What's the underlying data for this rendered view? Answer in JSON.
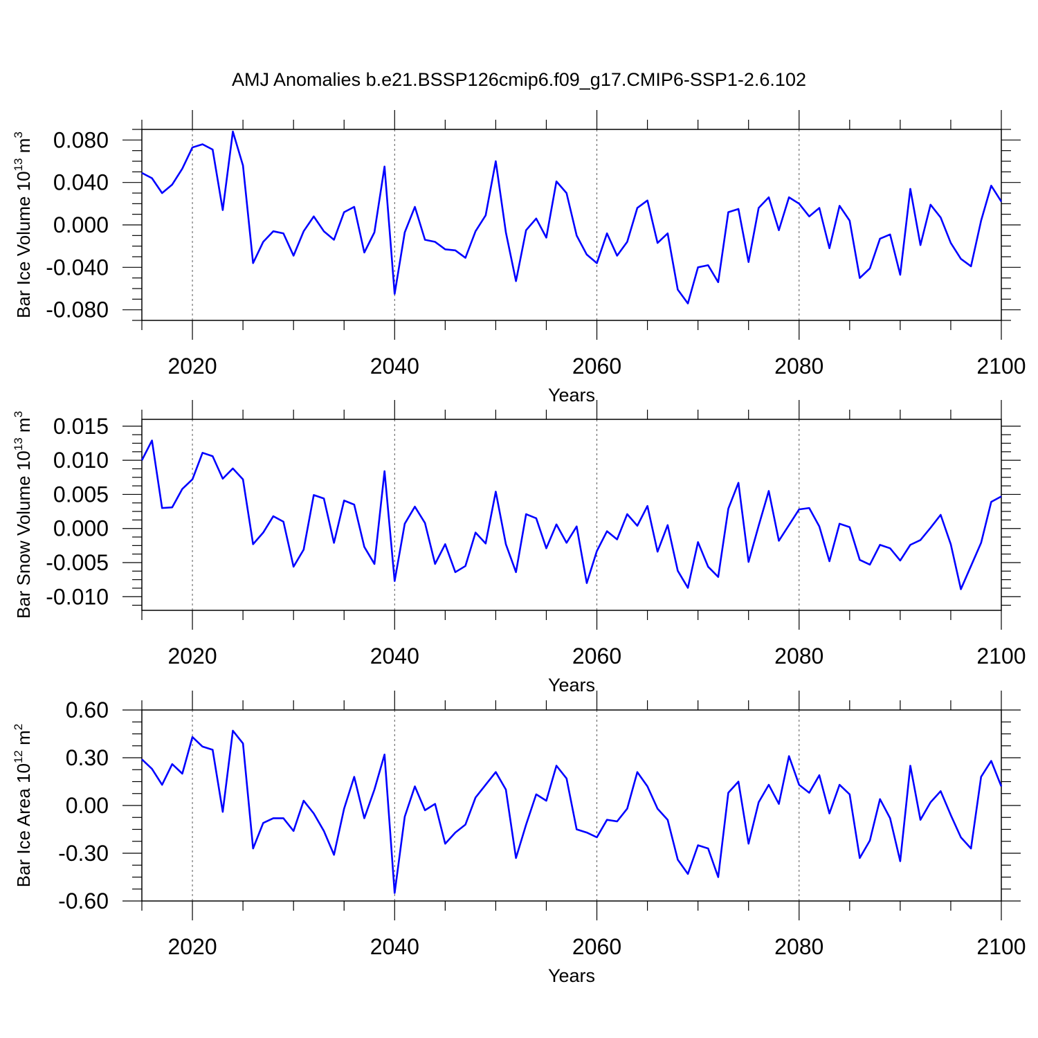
{
  "title": "AMJ Anomalies b.e21.BSSP126cmip6.f09_g17.CMIP6-SSP1-2.6.102",
  "colors": {
    "line": "#0000ff",
    "axis": "#000000",
    "grid": "#555555"
  },
  "chart_data": [
    {
      "type": "line",
      "ylabel": {
        "prefix": "Bar Ice Volume 10",
        "exp": "13",
        "unit": " m",
        "unit_exp": "3"
      },
      "xlabel": "Years",
      "xlim": [
        2015,
        2100
      ],
      "ylim": [
        -0.09,
        0.09
      ],
      "xticks": [
        2020,
        2040,
        2060,
        2080,
        2100
      ],
      "yticks": [
        -0.08,
        -0.04,
        0.0,
        0.04,
        0.08
      ],
      "ytick_labels": [
        "-0.080",
        "-0.040",
        "0.000",
        "0.040",
        "0.080"
      ],
      "x": [
        2015,
        2016,
        2017,
        2018,
        2019,
        2020,
        2021,
        2022,
        2023,
        2024,
        2025,
        2026,
        2027,
        2028,
        2029,
        2030,
        2031,
        2032,
        2033,
        2034,
        2035,
        2036,
        2037,
        2038,
        2039,
        2040,
        2041,
        2042,
        2043,
        2044,
        2045,
        2046,
        2047,
        2048,
        2049,
        2050,
        2051,
        2052,
        2053,
        2054,
        2055,
        2056,
        2057,
        2058,
        2059,
        2060,
        2061,
        2062,
        2063,
        2064,
        2065,
        2066,
        2067,
        2068,
        2069,
        2070,
        2071,
        2072,
        2073,
        2074,
        2075,
        2076,
        2077,
        2078,
        2079,
        2080,
        2081,
        2082,
        2083,
        2084,
        2085,
        2086,
        2087,
        2088,
        2089,
        2090,
        2091,
        2092,
        2093,
        2094,
        2095,
        2096,
        2097,
        2098,
        2099,
        2100
      ],
      "series": [
        {
          "name": "Bar Ice Volume",
          "values": [
            0.049,
            0.044,
            0.03,
            0.038,
            0.053,
            0.073,
            0.076,
            0.071,
            0.014,
            0.088,
            0.056,
            -0.036,
            -0.016,
            -0.006,
            -0.008,
            -0.029,
            -0.006,
            0.008,
            -0.006,
            -0.014,
            0.012,
            0.017,
            -0.026,
            -0.007,
            0.055,
            -0.065,
            -0.007,
            0.017,
            -0.014,
            -0.016,
            -0.023,
            -0.024,
            -0.031,
            -0.006,
            0.009,
            0.06,
            -0.007,
            -0.053,
            -0.005,
            0.006,
            -0.012,
            0.041,
            0.03,
            -0.01,
            -0.028,
            -0.036,
            -0.008,
            -0.029,
            -0.016,
            0.016,
            0.023,
            -0.017,
            -0.008,
            -0.061,
            -0.074,
            -0.04,
            -0.038,
            -0.054,
            0.012,
            0.015,
            -0.035,
            0.016,
            0.026,
            -0.005,
            0.026,
            0.02,
            0.008,
            0.016,
            -0.022,
            0.018,
            0.004,
            -0.05,
            -0.041,
            -0.013,
            -0.009,
            -0.047,
            0.034,
            -0.019,
            0.019,
            0.007,
            -0.017,
            -0.032,
            -0.039,
            0.004,
            0.037,
            0.022
          ]
        }
      ]
    },
    {
      "type": "line",
      "ylabel": {
        "prefix": "Bar Snow Volume 10",
        "exp": "13",
        "unit": " m",
        "unit_exp": "3"
      },
      "xlabel": "Years",
      "xlim": [
        2015,
        2100
      ],
      "ylim": [
        -0.012,
        0.016
      ],
      "xticks": [
        2020,
        2040,
        2060,
        2080,
        2100
      ],
      "yticks": [
        -0.01,
        -0.005,
        0.0,
        0.005,
        0.01,
        0.015
      ],
      "ytick_labels": [
        "-0.010",
        "-0.005",
        "0.000",
        "0.005",
        "0.010",
        "0.015"
      ],
      "x": [
        2015,
        2016,
        2017,
        2018,
        2019,
        2020,
        2021,
        2022,
        2023,
        2024,
        2025,
        2026,
        2027,
        2028,
        2029,
        2030,
        2031,
        2032,
        2033,
        2034,
        2035,
        2036,
        2037,
        2038,
        2039,
        2040,
        2041,
        2042,
        2043,
        2044,
        2045,
        2046,
        2047,
        2048,
        2049,
        2050,
        2051,
        2052,
        2053,
        2054,
        2055,
        2056,
        2057,
        2058,
        2059,
        2060,
        2061,
        2062,
        2063,
        2064,
        2065,
        2066,
        2067,
        2068,
        2069,
        2070,
        2071,
        2072,
        2073,
        2074,
        2075,
        2076,
        2077,
        2078,
        2079,
        2080,
        2081,
        2082,
        2083,
        2084,
        2085,
        2086,
        2087,
        2088,
        2089,
        2090,
        2091,
        2092,
        2093,
        2094,
        2095,
        2096,
        2097,
        2098,
        2099,
        2100
      ],
      "series": [
        {
          "name": "Bar Snow Volume",
          "values": [
            0.01,
            0.0129,
            0.003,
            0.0031,
            0.0058,
            0.0072,
            0.0111,
            0.0106,
            0.0073,
            0.0088,
            0.0072,
            -0.0023,
            -0.0006,
            0.0018,
            0.001,
            -0.0056,
            -0.0031,
            0.0049,
            0.0044,
            -0.0021,
            0.0041,
            0.0035,
            -0.0027,
            -0.0052,
            0.0084,
            -0.0077,
            0.0007,
            0.0032,
            0.0008,
            -0.0052,
            -0.0023,
            -0.0064,
            -0.0055,
            -0.0006,
            -0.0022,
            0.0054,
            -0.0023,
            -0.0064,
            0.0021,
            0.0015,
            -0.0029,
            0.0006,
            -0.0021,
            0.0003,
            -0.008,
            -0.0033,
            -0.0004,
            -0.0016,
            0.0021,
            0.0004,
            0.0033,
            -0.0034,
            0.0005,
            -0.0062,
            -0.0087,
            -0.002,
            -0.0056,
            -0.0071,
            0.0029,
            0.0067,
            -0.0049,
            0.0004,
            0.0055,
            -0.0018,
            0.0005,
            0.0028,
            0.003,
            0.0003,
            -0.0048,
            0.0007,
            0.0002,
            -0.0046,
            -0.0053,
            -0.0024,
            -0.0029,
            -0.0047,
            -0.0024,
            -0.0017,
            0.0001,
            0.002,
            -0.0023,
            -0.0089,
            -0.0055,
            -0.0021,
            0.0039,
            0.0047
          ]
        }
      ]
    },
    {
      "type": "line",
      "ylabel": {
        "prefix": "Bar Ice Area 10",
        "exp": "12",
        "unit": " m",
        "unit_exp": "2"
      },
      "xlabel": "Years",
      "xlim": [
        2015,
        2100
      ],
      "ylim": [
        -0.6,
        0.6
      ],
      "xticks": [
        2020,
        2040,
        2060,
        2080,
        2100
      ],
      "yticks": [
        -0.6,
        -0.3,
        0.0,
        0.3,
        0.6
      ],
      "ytick_labels": [
        "-0.60",
        "-0.30",
        "0.00",
        "0.30",
        "0.60"
      ],
      "x": [
        2015,
        2016,
        2017,
        2018,
        2019,
        2020,
        2021,
        2022,
        2023,
        2024,
        2025,
        2026,
        2027,
        2028,
        2029,
        2030,
        2031,
        2032,
        2033,
        2034,
        2035,
        2036,
        2037,
        2038,
        2039,
        2040,
        2041,
        2042,
        2043,
        2044,
        2045,
        2046,
        2047,
        2048,
        2049,
        2050,
        2051,
        2052,
        2053,
        2054,
        2055,
        2056,
        2057,
        2058,
        2059,
        2060,
        2061,
        2062,
        2063,
        2064,
        2065,
        2066,
        2067,
        2068,
        2069,
        2070,
        2071,
        2072,
        2073,
        2074,
        2075,
        2076,
        2077,
        2078,
        2079,
        2080,
        2081,
        2082,
        2083,
        2084,
        2085,
        2086,
        2087,
        2088,
        2089,
        2090,
        2091,
        2092,
        2093,
        2094,
        2095,
        2096,
        2097,
        2098,
        2099,
        2100
      ],
      "series": [
        {
          "name": "Bar Ice Area",
          "values": [
            0.29,
            0.23,
            0.13,
            0.26,
            0.2,
            0.43,
            0.37,
            0.35,
            -0.04,
            0.47,
            0.39,
            -0.27,
            -0.11,
            -0.08,
            -0.08,
            -0.16,
            0.03,
            -0.05,
            -0.16,
            -0.31,
            -0.02,
            0.18,
            -0.08,
            0.1,
            0.32,
            -0.55,
            -0.07,
            0.12,
            -0.03,
            0.01,
            -0.24,
            -0.17,
            -0.12,
            0.05,
            0.13,
            0.21,
            0.1,
            -0.33,
            -0.12,
            0.07,
            0.03,
            0.25,
            0.17,
            -0.15,
            -0.17,
            -0.2,
            -0.09,
            -0.1,
            -0.02,
            0.21,
            0.12,
            -0.02,
            -0.09,
            -0.34,
            -0.43,
            -0.25,
            -0.27,
            -0.45,
            0.08,
            0.15,
            -0.24,
            0.02,
            0.13,
            0.01,
            0.31,
            0.13,
            0.08,
            0.19,
            -0.05,
            0.13,
            0.07,
            -0.33,
            -0.22,
            0.04,
            -0.08,
            -0.35,
            0.25,
            -0.09,
            0.02,
            0.09,
            -0.06,
            -0.2,
            -0.27,
            0.18,
            0.28,
            0.12
          ]
        }
      ]
    }
  ]
}
